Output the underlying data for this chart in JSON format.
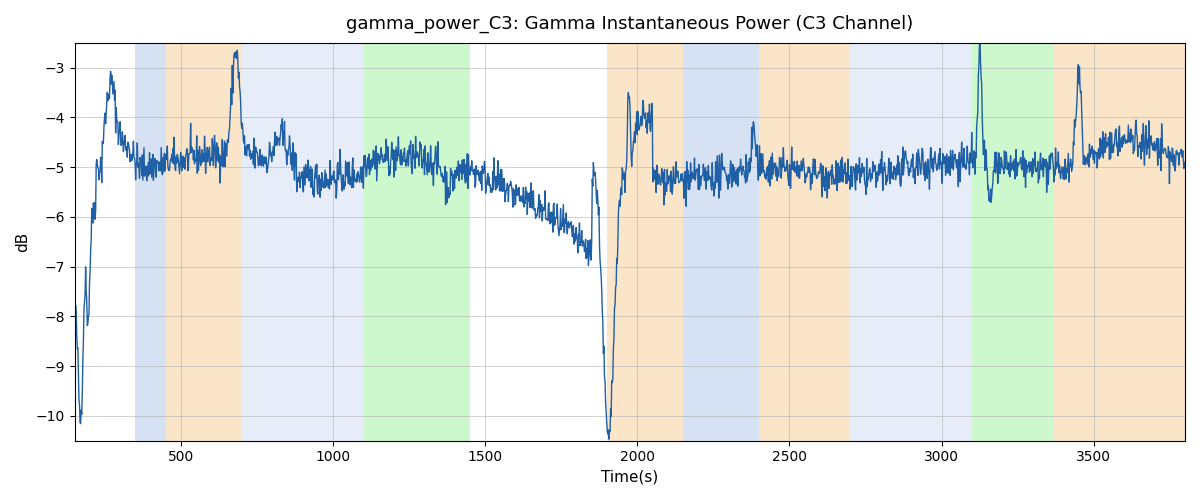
{
  "title": "gamma_power_C3: Gamma Instantaneous Power (C3 Channel)",
  "xlabel": "Time(s)",
  "ylabel": "dB",
  "xlim": [
    150,
    3800
  ],
  "ylim": [
    -10.5,
    -2.5
  ],
  "yticks": [
    -10,
    -9,
    -8,
    -7,
    -6,
    -5,
    -4,
    -3
  ],
  "xticks": [
    500,
    1000,
    1500,
    2000,
    2500,
    3000,
    3500
  ],
  "line_color": "#1f5fa6",
  "line_width": 1.0,
  "bg_color": "#ffffff",
  "grid_color": "#b0b0b0",
  "colored_bands": [
    {
      "start": 350,
      "end": 450,
      "color": "#aec6e8",
      "alpha": 0.5
    },
    {
      "start": 450,
      "end": 700,
      "color": "#f5c07a",
      "alpha": 0.4
    },
    {
      "start": 700,
      "end": 1100,
      "color": "#aec6e8",
      "alpha": 0.3
    },
    {
      "start": 1100,
      "end": 1450,
      "color": "#90ee90",
      "alpha": 0.45
    },
    {
      "start": 1900,
      "end": 2150,
      "color": "#f5c07a",
      "alpha": 0.4
    },
    {
      "start": 2150,
      "end": 2400,
      "color": "#aec6e8",
      "alpha": 0.5
    },
    {
      "start": 2400,
      "end": 2700,
      "color": "#f5c07a",
      "alpha": 0.4
    },
    {
      "start": 2700,
      "end": 3100,
      "color": "#aec6e8",
      "alpha": 0.3
    },
    {
      "start": 3100,
      "end": 3370,
      "color": "#90ee90",
      "alpha": 0.45
    },
    {
      "start": 3370,
      "end": 3520,
      "color": "#f5c07a",
      "alpha": 0.4
    },
    {
      "start": 3520,
      "end": 3800,
      "color": "#f5c07a",
      "alpha": 0.4
    }
  ],
  "seed": 42
}
